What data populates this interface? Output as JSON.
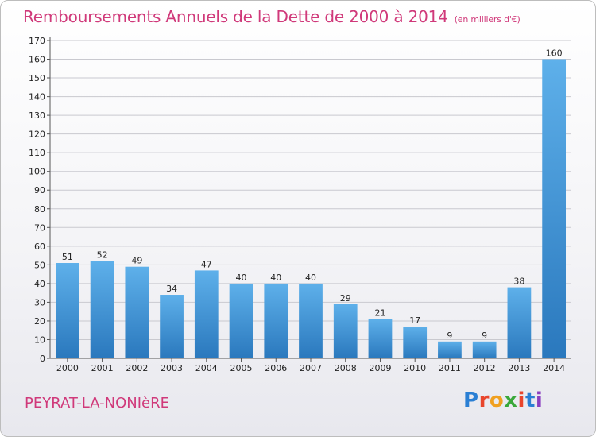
{
  "header": {
    "title": "Remboursements Annuels de la Dette de 2000 à 2014",
    "unit": "(en milliers d'€)"
  },
  "footer": {
    "town": "PEYRAT-LA-NONIèRE",
    "logo": "Proxiti",
    "logo_colors": [
      "#2a7fd4",
      "#e8452c",
      "#f0a020",
      "#3aa83a",
      "#e8452c",
      "#2a7fd4",
      "#8a3fc0"
    ]
  },
  "chart_data": {
    "type": "bar",
    "title": "Remboursements Annuels de la Dette de 2000 à 2014",
    "categories": [
      "2000",
      "2001",
      "2002",
      "2003",
      "2004",
      "2005",
      "2006",
      "2007",
      "2008",
      "2009",
      "2010",
      "2011",
      "2012",
      "2013",
      "2014"
    ],
    "values": [
      51,
      52,
      49,
      34,
      47,
      40,
      40,
      40,
      29,
      21,
      17,
      9,
      9,
      38,
      160
    ],
    "ylim": [
      0,
      170
    ],
    "yticks": [
      0,
      10,
      20,
      30,
      40,
      50,
      60,
      70,
      80,
      90,
      100,
      110,
      120,
      130,
      140,
      150,
      160,
      170
    ],
    "grid": true,
    "colors": {
      "bar_top": "#5eb0ea",
      "bar_bottom": "#2a78bd"
    }
  }
}
